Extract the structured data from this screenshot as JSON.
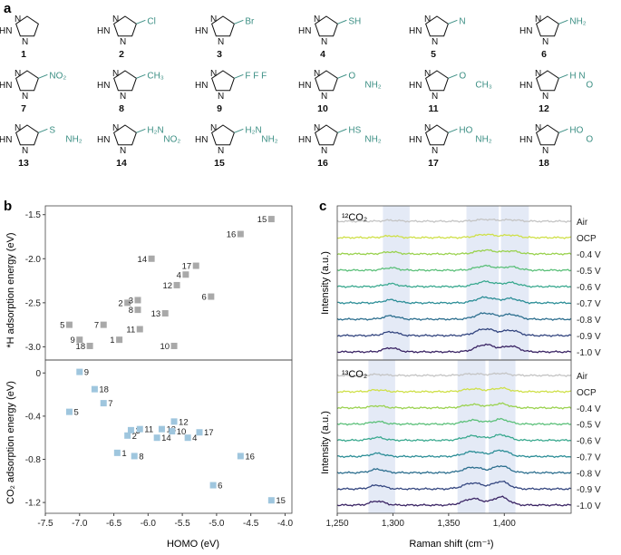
{
  "panel_a": {
    "letter": "a",
    "compounds": [
      {
        "num": "1",
        "sub1": "",
        "sub2": ""
      },
      {
        "num": "2",
        "sub1": "Cl",
        "sub2": ""
      },
      {
        "num": "3",
        "sub1": "Br",
        "sub2": ""
      },
      {
        "num": "4",
        "sub1": "SH",
        "sub2": ""
      },
      {
        "num": "5",
        "sub1": "N",
        "sub2": ""
      },
      {
        "num": "6",
        "sub1": "NH₂",
        "sub2": ""
      },
      {
        "num": "7",
        "sub1": "NO₂",
        "sub2": ""
      },
      {
        "num": "8",
        "sub1": "CH₃",
        "sub2": ""
      },
      {
        "num": "9",
        "sub1": "F F F",
        "sub2": ""
      },
      {
        "num": "10",
        "sub1": "O",
        "sub2": "NH₂"
      },
      {
        "num": "11",
        "sub1": "O",
        "sub2": "CH₃"
      },
      {
        "num": "12",
        "sub1": "H N",
        "sub2": "O"
      },
      {
        "num": "13",
        "sub1": "S",
        "sub2": "NH₂"
      },
      {
        "num": "14",
        "sub1": "H₂N",
        "sub2": "NO₂"
      },
      {
        "num": "15",
        "sub1": "H₂N",
        "sub2": "NH₂"
      },
      {
        "num": "16",
        "sub1": "HS",
        "sub2": "NH₂"
      },
      {
        "num": "17",
        "sub1": "HO",
        "sub2": "NH₂"
      },
      {
        "num": "18",
        "sub1": "HO",
        "sub2": "O"
      }
    ],
    "ring_atoms": {
      "n": "N",
      "nh": "HN",
      "n_lower": "N",
      "hn_lower": "HN"
    }
  },
  "panel_b": {
    "letter": "b",
    "colors": {
      "top": "#a9a9a9",
      "bottom": "#9fc6de"
    },
    "chart_data": [
      {
        "type": "scatter",
        "title": "",
        "xlabel": "HOMO (eV)",
        "ylabel": "*H adsorption energy (eV)",
        "xlim": [
          -7.5,
          -3.9
        ],
        "ylim": [
          -3.15,
          -1.4
        ],
        "yticks": [
          "-1.5",
          "-2.0",
          "-2.5",
          "-3.0"
        ],
        "points": [
          {
            "label": "1",
            "x": -6.42,
            "y": -2.92
          },
          {
            "label": "2",
            "x": -6.3,
            "y": -2.5
          },
          {
            "label": "3",
            "x": -6.15,
            "y": -2.47
          },
          {
            "label": "5",
            "x": -7.15,
            "y": -2.75
          },
          {
            "label": "6",
            "x": -5.08,
            "y": -2.43
          },
          {
            "label": "7",
            "x": -6.65,
            "y": -2.75
          },
          {
            "label": "8",
            "x": -6.15,
            "y": -2.58
          },
          {
            "label": "9",
            "x": -7.0,
            "y": -2.92
          },
          {
            "label": "10",
            "x": -5.62,
            "y": -2.99
          },
          {
            "label": "11",
            "x": -6.12,
            "y": -2.8
          },
          {
            "label": "12",
            "x": -5.58,
            "y": -2.3
          },
          {
            "label": "13",
            "x": -5.75,
            "y": -2.62
          },
          {
            "label": "14",
            "x": -5.95,
            "y": -2.0
          },
          {
            "label": "15",
            "x": -4.2,
            "y": -1.55
          },
          {
            "label": "16",
            "x": -4.65,
            "y": -1.72
          },
          {
            "label": "17",
            "x": -5.3,
            "y": -2.08
          },
          {
            "label": "18",
            "x": -6.85,
            "y": -2.99
          },
          {
            "label": "4",
            "x": -5.45,
            "y": -2.18
          }
        ]
      },
      {
        "type": "scatter",
        "title": "",
        "xlabel": "HOMO (eV)",
        "ylabel": "CO₂ adsorption energy (eV)",
        "xlim": [
          -7.5,
          -3.9
        ],
        "ylim": [
          -1.3,
          0.12
        ],
        "xticks": [
          "-7.5",
          "-7.0",
          "-6.5",
          "-6.0",
          "-5.5",
          "-5.0",
          "-4.5",
          "-4.0"
        ],
        "yticks": [
          "0",
          "-0.4",
          "-0.8",
          "-1.2"
        ],
        "points": [
          {
            "label": "9",
            "x": -7.0,
            "y": 0.01
          },
          {
            "label": "18",
            "x": -6.78,
            "y": -0.15
          },
          {
            "label": "7",
            "x": -6.65,
            "y": -0.28
          },
          {
            "label": "5",
            "x": -7.15,
            "y": -0.36
          },
          {
            "label": "3",
            "x": -6.25,
            "y": -0.53
          },
          {
            "label": "11",
            "x": -6.12,
            "y": -0.52
          },
          {
            "label": "2",
            "x": -6.3,
            "y": -0.58
          },
          {
            "label": "13",
            "x": -5.8,
            "y": -0.52
          },
          {
            "label": "12",
            "x": -5.62,
            "y": -0.45
          },
          {
            "label": "14",
            "x": -5.87,
            "y": -0.6
          },
          {
            "label": "10",
            "x": -5.65,
            "y": -0.54
          },
          {
            "label": "4",
            "x": -5.42,
            "y": -0.6
          },
          {
            "label": "17",
            "x": -5.25,
            "y": -0.55
          },
          {
            "label": "1",
            "x": -6.45,
            "y": -0.74
          },
          {
            "label": "8",
            "x": -6.2,
            "y": -0.77
          },
          {
            "label": "16",
            "x": -4.65,
            "y": -0.77
          },
          {
            "label": "6",
            "x": -5.05,
            "y": -1.04
          },
          {
            "label": "15",
            "x": -4.2,
            "y": -1.18
          }
        ]
      }
    ]
  },
  "panel_c": {
    "letter": "c",
    "chart_data": {
      "type": "line",
      "title": "",
      "xlabel": "Raman shift (cm⁻¹)",
      "ylabel": "Intensity (a.u.)",
      "xlim": [
        1250,
        1460
      ],
      "xticks": [
        "1,250",
        "1,300",
        "1,350",
        "1,400"
      ],
      "series_labels": [
        "Air",
        "OCP",
        "-0.4 V",
        "-0.5 V",
        "-0.6 V",
        "-0.7 V",
        "-0.8 V",
        "-0.9 V",
        "-1.0 V"
      ],
      "series_colors": [
        "#c4c4c4",
        "#cfe049",
        "#9ad24f",
        "#5cc07a",
        "#3aa98f",
        "#2c8e97",
        "#2d6f8f",
        "#33457f",
        "#3a2464"
      ],
      "subplots": [
        {
          "label": "¹²CO₂",
          "highlight_bands": [
            [
              1291,
              1315
            ],
            [
              1366,
              1395
            ],
            [
              1397,
              1422
            ]
          ],
          "peaks": [
            {
              "center": 1298,
              "width": 9,
              "amp": 0.5
            },
            {
              "center": 1383,
              "width": 12,
              "amp": 0.9
            },
            {
              "center": 1406,
              "width": 10,
              "amp": 0.7
            }
          ]
        },
        {
          "label": "¹³CO₂",
          "highlight_bands": [
            [
              1278,
              1302
            ],
            [
              1358,
              1383
            ],
            [
              1386,
              1410
            ]
          ],
          "peaks": [
            {
              "center": 1286,
              "width": 9,
              "amp": 0.5
            },
            {
              "center": 1372,
              "width": 12,
              "amp": 0.8
            },
            {
              "center": 1397,
              "width": 10,
              "amp": 1.0
            }
          ]
        }
      ]
    }
  }
}
